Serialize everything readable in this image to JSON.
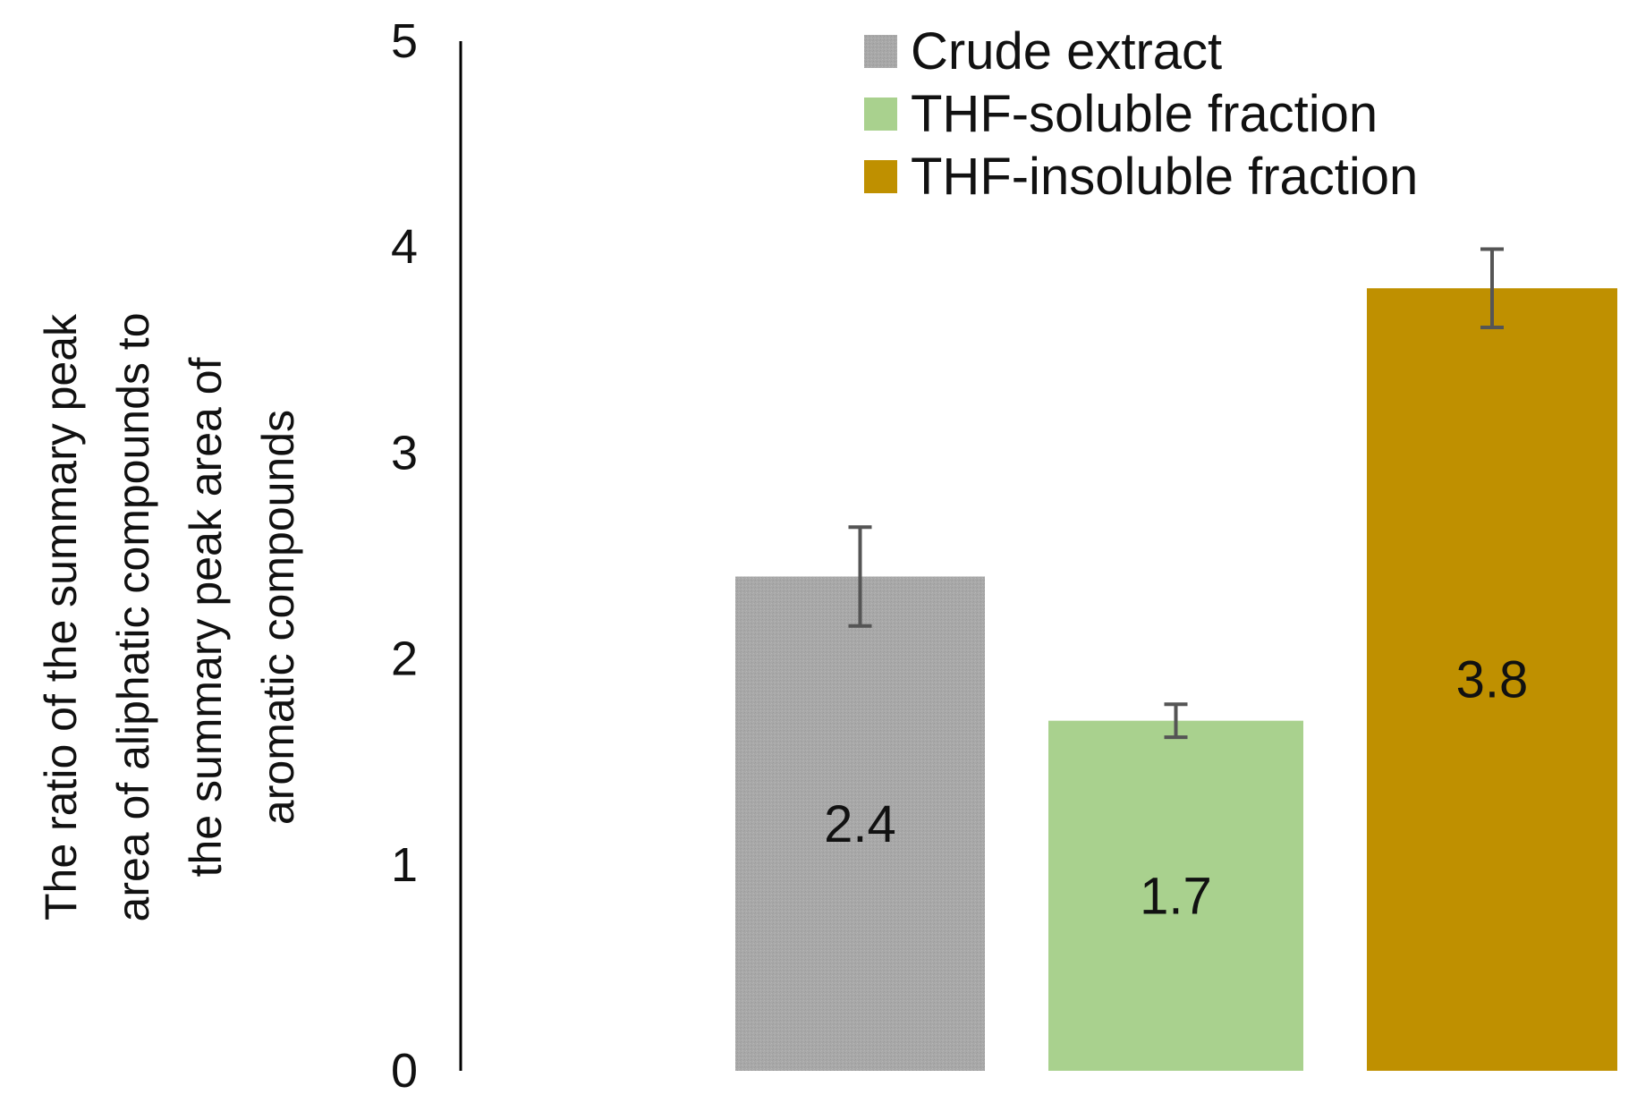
{
  "chart_data": {
    "type": "bar",
    "categories": [
      "Crude extract",
      "THF-soluble fraction",
      "THF-insoluble fraction"
    ],
    "values": [
      2.4,
      1.7,
      3.8
    ],
    "error_bars": [
      0.24,
      0.08,
      0.19
    ],
    "data_labels": [
      "2.4",
      "1.7",
      "3.8"
    ],
    "colors": [
      "#a8a8a8",
      "#a9d18e",
      "#bf9000"
    ],
    "ylabel_lines": [
      "The ratio of the summary peak",
      "area of aliphatic compounds to",
      "the summary peak area of",
      "aromatic compounds"
    ],
    "yticks": [
      "0",
      "1",
      "2",
      "3",
      "4",
      "5"
    ],
    "ylim": [
      0,
      5
    ],
    "grid": false,
    "legend": {
      "position": "top-right",
      "entries": [
        "Crude extract",
        "THF-soluble fraction",
        "THF-insoluble fraction"
      ]
    }
  }
}
